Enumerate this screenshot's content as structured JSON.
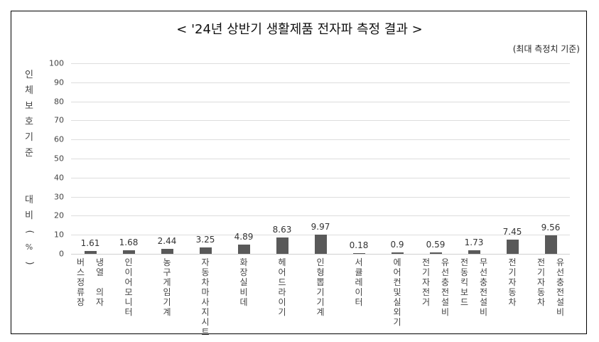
{
  "chart_data": {
    "type": "bar",
    "title": "< '24년 상반기 생활제품 전자파 측정 결과 >",
    "subtitle": "(최대 측정치 기준)",
    "xlabel": "",
    "ylabel": "인체보호기준 대비(%)",
    "ylim": [
      0,
      100
    ],
    "yticks": [
      0,
      10,
      20,
      30,
      40,
      50,
      60,
      70,
      80,
      90,
      100
    ],
    "grid": true,
    "legend": null,
    "bar_color": "#595959",
    "categories": [
      "버스정류장 냉열 의자",
      "인이어모니터",
      "농구게임기계",
      "자동차마사지시트",
      "화장실 비데",
      "헤어드라이기",
      "인형뽑기기계",
      "서큘레이터",
      "에어컨 및 실외기",
      "전기자전거 유선충전설비",
      "전동킥보드 무선충전설비",
      "전기자동차",
      "전기자동차 유선충전설비"
    ],
    "category_lines": [
      [
        "버스정류장",
        "냉열 의자"
      ],
      [
        "인이어모니터"
      ],
      [
        "농구게임기계"
      ],
      [
        "자동차마사지시트"
      ],
      [
        "화장실비데"
      ],
      [
        "헤어드라이기"
      ],
      [
        "인형뽑기기계"
      ],
      [
        "서큘레이터"
      ],
      [
        "에어컨및실외기"
      ],
      [
        "전기자전거",
        "유선충전설비"
      ],
      [
        "전동킥보드",
        "무선충전설비"
      ],
      [
        "전기자동차"
      ],
      [
        "전기자동차",
        "유선충전설비"
      ]
    ],
    "values": [
      1.61,
      1.68,
      2.44,
      3.25,
      4.89,
      8.63,
      9.97,
      0.18,
      0.9,
      0.59,
      1.73,
      7.45,
      9.56
    ],
    "value_labels": [
      "1.61",
      "1.68",
      "2.44",
      "3.25",
      "4.89",
      "8.63",
      "9.97",
      "0.18",
      "0.9",
      "0.59",
      "1.73",
      "7.45",
      "9.56"
    ]
  }
}
